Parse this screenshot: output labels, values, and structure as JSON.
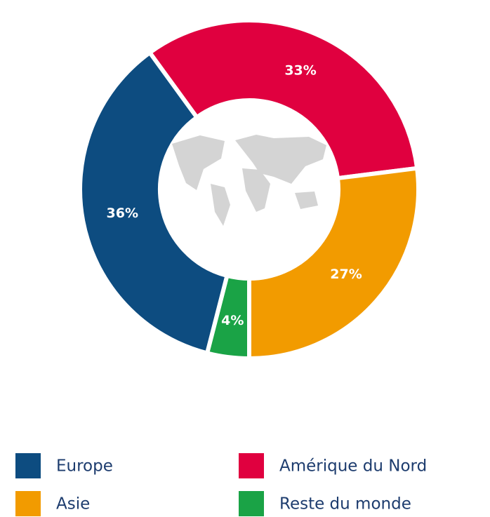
{
  "chart_data": {
    "type": "donut",
    "categories": [
      "Amérique du Nord",
      "Asie",
      "Reste du monde",
      "Europe"
    ],
    "values": [
      33,
      27,
      4,
      36
    ],
    "value_labels": [
      "33%",
      "27%",
      "4%",
      "36%"
    ],
    "colors": [
      "#e0003f",
      "#f29b00",
      "#1aa346",
      "#0d4c80"
    ],
    "start_angle": -36
  }
}
